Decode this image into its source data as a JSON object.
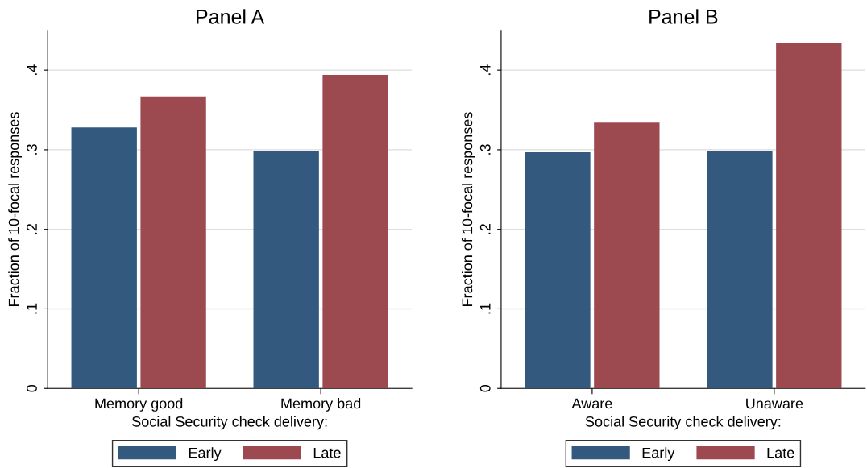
{
  "chart_data": [
    {
      "type": "bar",
      "title": "Panel A",
      "xlabel": "Social Security check delivery:",
      "ylabel": "Fraction of 10-focal responses",
      "categories": [
        "Memory good",
        "Memory bad"
      ],
      "series": [
        {
          "name": "Early",
          "color": "#335a7e",
          "values": [
            0.328,
            0.298
          ]
        },
        {
          "name": "Late",
          "color": "#9c4a4f",
          "values": [
            0.367,
            0.394
          ]
        }
      ],
      "ylim": [
        0,
        0.45
      ],
      "yticks": [
        {
          "value": 0,
          "label": "0"
        },
        {
          "value": 0.1,
          "label": ".1"
        },
        {
          "value": 0.2,
          "label": ".2"
        },
        {
          "value": 0.3,
          "label": ".3"
        },
        {
          "value": 0.4,
          "label": ".4"
        }
      ],
      "grid": "y",
      "legend": "bottom"
    },
    {
      "type": "bar",
      "title": "Panel B",
      "xlabel": "Social Security check delivery:",
      "ylabel": "Fraction of 10-focal responses",
      "categories": [
        "Aware",
        "Unaware"
      ],
      "series": [
        {
          "name": "Early",
          "color": "#335a7e",
          "values": [
            0.297,
            0.298
          ]
        },
        {
          "name": "Late",
          "color": "#9c4a4f",
          "values": [
            0.334,
            0.434
          ]
        }
      ],
      "ylim": [
        0,
        0.45
      ],
      "yticks": [
        {
          "value": 0,
          "label": "0"
        },
        {
          "value": 0.1,
          "label": ".1"
        },
        {
          "value": 0.2,
          "label": ".2"
        },
        {
          "value": 0.3,
          "label": ".3"
        },
        {
          "value": 0.4,
          "label": ".4"
        }
      ],
      "grid": "y",
      "legend": "bottom"
    }
  ]
}
